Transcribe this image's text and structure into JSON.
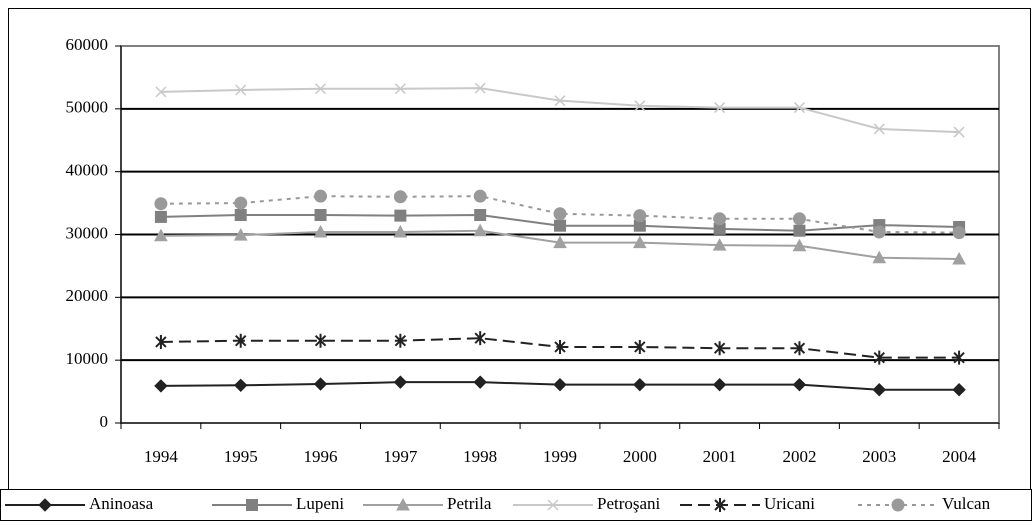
{
  "chart_data": {
    "type": "line",
    "categories": [
      "1994",
      "1995",
      "1996",
      "1997",
      "1998",
      "1999",
      "2000",
      "2001",
      "2002",
      "2003",
      "2004"
    ],
    "ylim": [
      0,
      60000
    ],
    "yticks": [
      0,
      10000,
      20000,
      30000,
      40000,
      50000,
      60000
    ],
    "grid": true,
    "legend": "bottom",
    "series": [
      {
        "name": "Aninoasa",
        "color": "#222222",
        "marker": "diamond",
        "dash": "solid",
        "values": [
          5900,
          6000,
          6200,
          6500,
          6500,
          6100,
          6100,
          6100,
          6100,
          5300,
          5300
        ]
      },
      {
        "name": "Lupeni",
        "color": "#808080",
        "marker": "square",
        "dash": "solid",
        "values": [
          32800,
          33100,
          33100,
          33000,
          33100,
          31400,
          31400,
          30900,
          30600,
          31500,
          31200
        ]
      },
      {
        "name": "Petrila",
        "color": "#a0a0a0",
        "marker": "triangle",
        "dash": "solid",
        "values": [
          29800,
          29900,
          30400,
          30400,
          30600,
          28700,
          28700,
          28300,
          28200,
          26300,
          26100
        ]
      },
      {
        "name": "Petroşani",
        "color": "#c8c8c8",
        "marker": "x",
        "dash": "solid",
        "values": [
          52700,
          53000,
          53200,
          53200,
          53300,
          51300,
          50500,
          50200,
          50200,
          46800,
          46300
        ]
      },
      {
        "name": "Uricani",
        "color": "#222222",
        "marker": "asterisk",
        "dash": "dashed",
        "values": [
          12900,
          13100,
          13100,
          13100,
          13500,
          12100,
          12100,
          11900,
          11900,
          10400,
          10400
        ]
      },
      {
        "name": "Vulcan",
        "color": "#999999",
        "marker": "circle",
        "dash": "dotted",
        "values": [
          34900,
          35000,
          36100,
          36000,
          36100,
          33300,
          33000,
          32500,
          32500,
          30400,
          30300
        ]
      }
    ]
  }
}
